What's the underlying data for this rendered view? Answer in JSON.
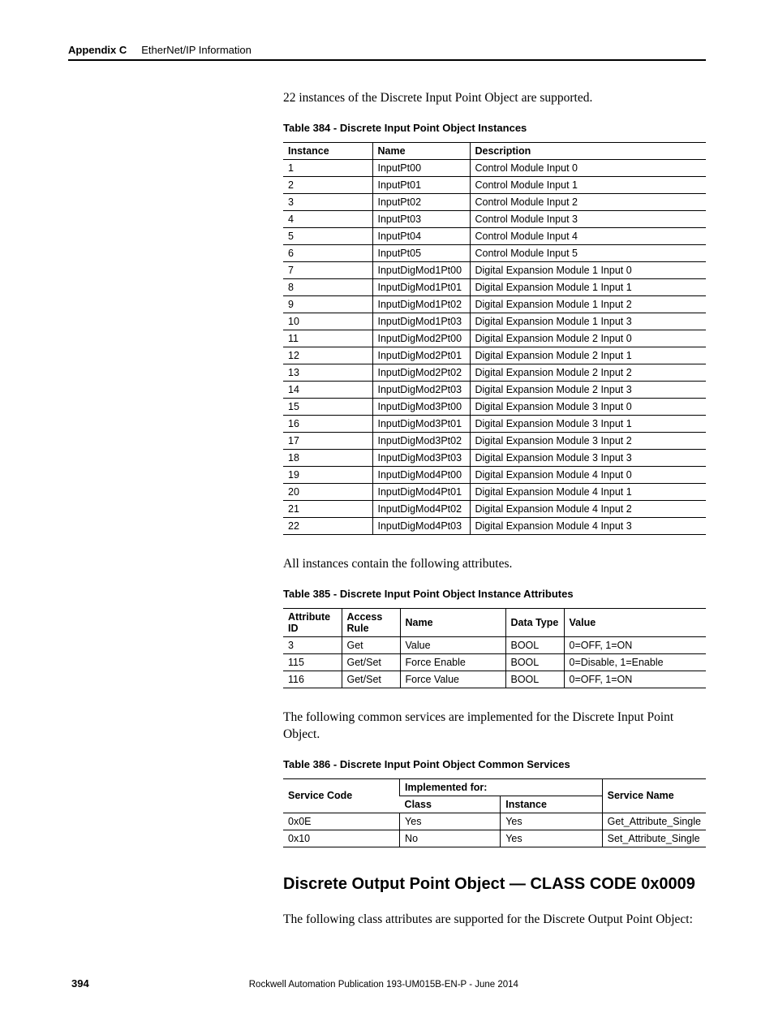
{
  "header": {
    "appendix": "Appendix C",
    "section": "EtherNet/IP Information"
  },
  "intro384": "22 instances of the Discrete Input Point Object are supported.",
  "table384": {
    "title": "Table 384 - Discrete Input Point Object Instances",
    "columns": [
      "Instance",
      "Name",
      "Description"
    ],
    "rows": [
      [
        "1",
        "InputPt00",
        "Control Module Input 0"
      ],
      [
        "2",
        "InputPt01",
        "Control Module Input 1"
      ],
      [
        "3",
        "InputPt02",
        "Control Module Input 2"
      ],
      [
        "4",
        "InputPt03",
        "Control Module Input 3"
      ],
      [
        "5",
        "InputPt04",
        "Control Module Input 4"
      ],
      [
        "6",
        "InputPt05",
        "Control Module Input 5"
      ],
      [
        "7",
        "InputDigMod1Pt00",
        "Digital Expansion Module 1 Input 0"
      ],
      [
        "8",
        "InputDigMod1Pt01",
        "Digital Expansion Module 1 Input 1"
      ],
      [
        "9",
        "InputDigMod1Pt02",
        "Digital Expansion Module 1 Input 2"
      ],
      [
        "10",
        "InputDigMod1Pt03",
        "Digital Expansion Module 1 Input 3"
      ],
      [
        "11",
        "InputDigMod2Pt00",
        "Digital Expansion Module 2 Input 0"
      ],
      [
        "12",
        "InputDigMod2Pt01",
        "Digital Expansion Module 2 Input 1"
      ],
      [
        "13",
        "InputDigMod2Pt02",
        "Digital Expansion Module 2 Input 2"
      ],
      [
        "14",
        "InputDigMod2Pt03",
        "Digital Expansion Module 2 Input 3"
      ],
      [
        "15",
        "InputDigMod3Pt00",
        "Digital Expansion Module 3 Input 0"
      ],
      [
        "16",
        "InputDigMod3Pt01",
        "Digital Expansion Module 3 Input 1"
      ],
      [
        "17",
        "InputDigMod3Pt02",
        "Digital Expansion Module 3 Input 2"
      ],
      [
        "18",
        "InputDigMod3Pt03",
        "Digital Expansion Module 3 Input 3"
      ],
      [
        "19",
        "InputDigMod4Pt00",
        "Digital Expansion Module 4 Input 0"
      ],
      [
        "20",
        "InputDigMod4Pt01",
        "Digital Expansion Module 4 Input 1"
      ],
      [
        "21",
        "InputDigMod4Pt02",
        "Digital Expansion Module 4 Input 2"
      ],
      [
        "22",
        "InputDigMod4Pt03",
        "Digital Expansion Module 4 Input 3"
      ]
    ]
  },
  "intro385": "All instances contain the following attributes.",
  "table385": {
    "title": "Table 385 - Discrete Input Point Object Instance Attributes",
    "columns": [
      "Attribute ID",
      "Access Rule",
      "Name",
      "Data Type",
      "Value"
    ],
    "rows": [
      [
        "3",
        "Get",
        "Value",
        "BOOL",
        "0=OFF, 1=ON"
      ],
      [
        "115",
        "Get/Set",
        "Force Enable",
        "BOOL",
        "0=Disable, 1=Enable"
      ],
      [
        "116",
        "Get/Set",
        "Force Value",
        "BOOL",
        "0=OFF, 1=ON"
      ]
    ]
  },
  "intro386": "The following common services are implemented for the Discrete Input Point Object.",
  "table386": {
    "title": "Table 386 - Discrete Input Point Object Common Services",
    "header": {
      "service_code": "Service Code",
      "implemented_for": "Implemented for:",
      "class": "Class",
      "instance": "Instance",
      "service_name": "Service Name"
    },
    "rows": [
      [
        "0x0E",
        "Yes",
        "Yes",
        "Get_Attribute_Single"
      ],
      [
        "0x10",
        "No",
        "Yes",
        "Set_Attribute_Single"
      ]
    ]
  },
  "heading_0009": "Discrete Output Point Object — CLASS CODE 0x0009",
  "intro_0009": "The following class attributes are supported for the Discrete Output Point Object:",
  "footer": {
    "page": "394",
    "pub": "Rockwell Automation Publication 193-UM015B-EN-P - June 2014"
  }
}
